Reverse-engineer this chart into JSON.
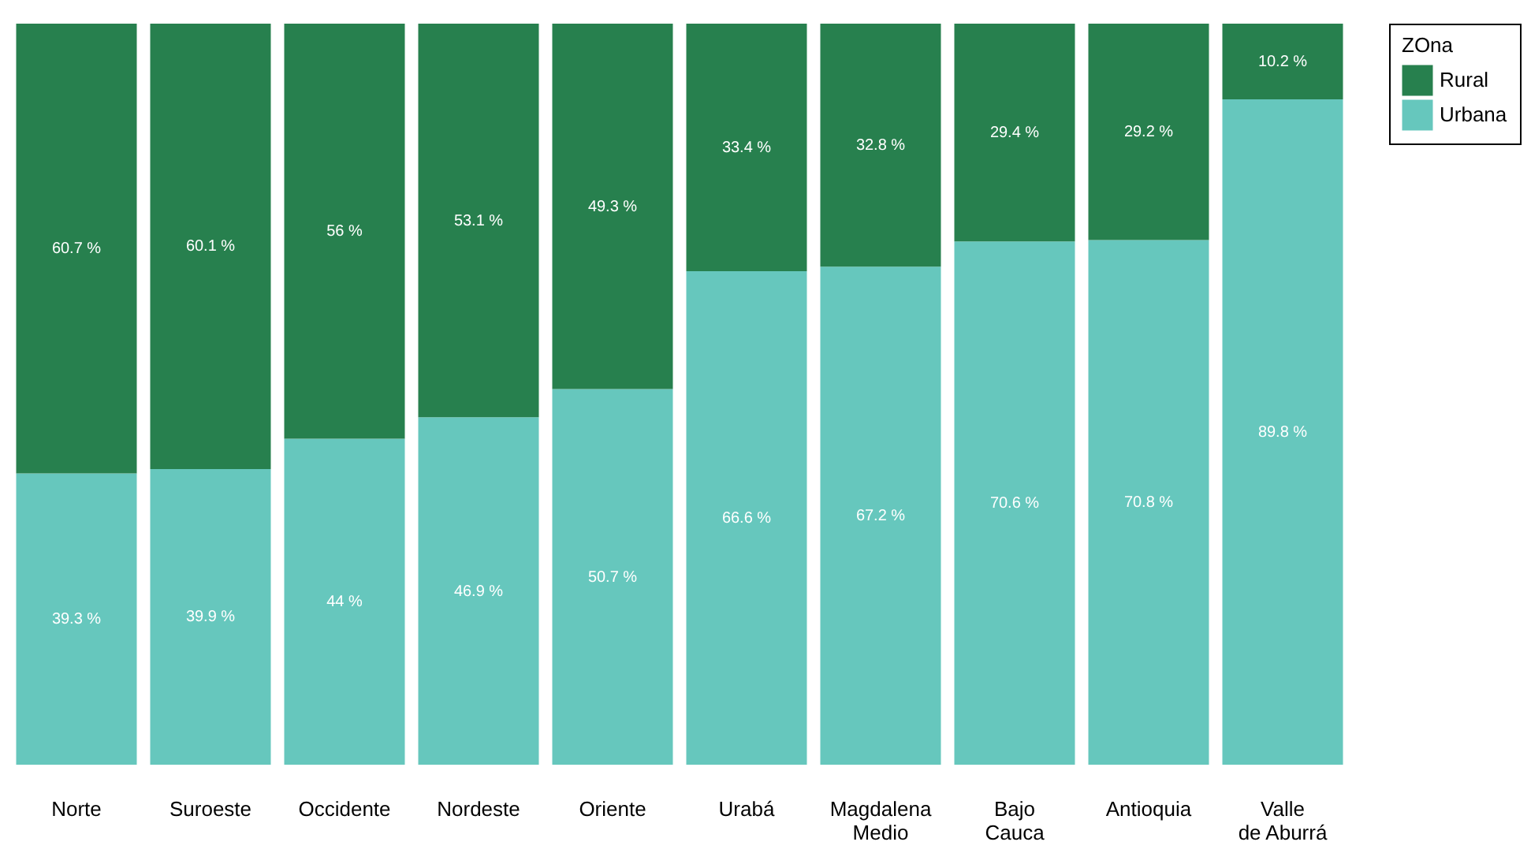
{
  "chart_data": {
    "type": "bar",
    "stacked": true,
    "legend_title": "ZOna",
    "legend": "right",
    "tick_labels": "x",
    "ylim": [
      0,
      100
    ],
    "categories": [
      "Norte",
      "Suroeste",
      "Occidente",
      "Nordeste",
      "Oriente",
      "Urabá",
      "Magdalena Medio",
      "Bajo Cauca",
      "Antioquia",
      "Valle de Aburrá"
    ],
    "series": [
      {
        "name": "Urbana",
        "color": "#66c7bd",
        "values": [
          39.3,
          39.9,
          44,
          46.9,
          50.7,
          66.6,
          67.2,
          70.6,
          70.8,
          89.8
        ],
        "value_labels": [
          "39.3 %",
          "39.9 %",
          "44 %",
          "46.9 %",
          "50.7 %",
          "66.6 %",
          "67.2 %",
          "70.6 %",
          "70.8 %",
          "89.8 %"
        ]
      },
      {
        "name": "Rural",
        "color": "#27804e",
        "values": [
          60.7,
          60.1,
          56,
          53.1,
          49.3,
          33.4,
          32.8,
          29.4,
          29.2,
          10.2
        ],
        "value_labels": [
          "60.7 %",
          "60.1 %",
          "56 %",
          "53.1 %",
          "49.3 %",
          "33.4 %",
          "32.8 %",
          "29.4 %",
          "29.2 %",
          "10.2 %"
        ]
      }
    ]
  }
}
